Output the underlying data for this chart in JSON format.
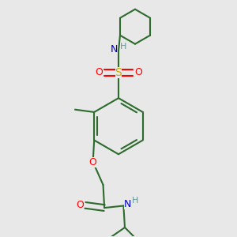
{
  "bg_color": "#e8e8e8",
  "bond_color": "#2d6b2d",
  "atom_colors": {
    "O": "#ff0000",
    "N": "#0000cd",
    "S": "#ccaa00",
    "H": "#5a9a9a",
    "C": "#2d6b2d"
  },
  "line_width": 1.5,
  "font_size": 9
}
